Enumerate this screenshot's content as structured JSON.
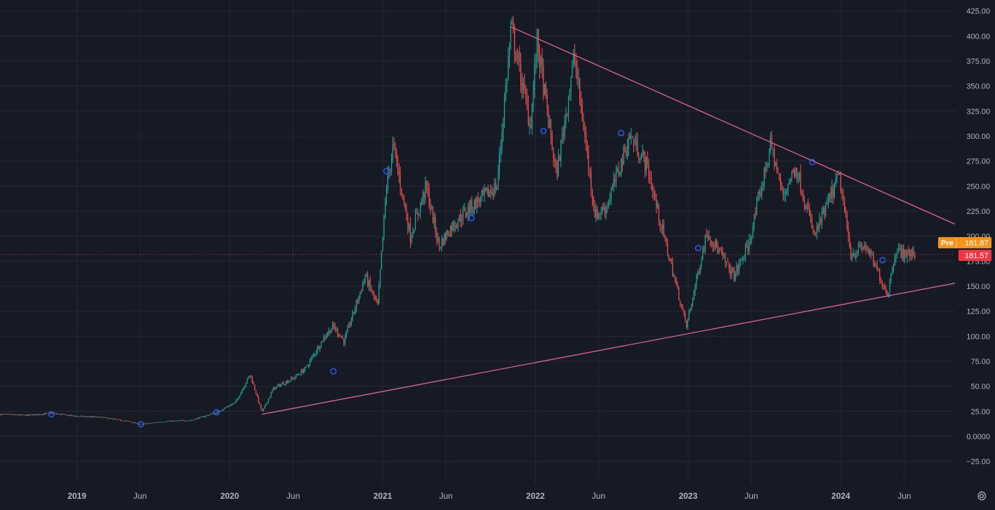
{
  "colors": {
    "background": "#161a25",
    "grid": "#232834",
    "axis_text": "#b2b5be",
    "up": "#26a69a",
    "down": "#ef5350",
    "trendline": "#e5609b",
    "marker": "#2962ff",
    "pre_badge": "#f7931a",
    "price_badge": "#f23645"
  },
  "price_axis": {
    "pre_label": "Pre",
    "pre_value": "181.87",
    "last_value": "181.57"
  },
  "settings_icon": "gear-icon",
  "chart_data": {
    "type": "candlestick",
    "y_ticks": [
      "425.00",
      "400.00",
      "375.00",
      "350.00",
      "325.00",
      "300.00",
      "275.00",
      "250.00",
      "225.00",
      "200.00",
      "175.00",
      "150.00",
      "125.00",
      "100.00",
      "75.00",
      "50.00",
      "25.00",
      "0.0000",
      "−25.00"
    ],
    "x_ticks": [
      "2019",
      "Jun",
      "2020",
      "Jun",
      "2021",
      "Jun",
      "2022",
      "Jun",
      "2023",
      "Jun",
      "2024",
      "Jun"
    ],
    "ylim": [
      -35,
      430
    ],
    "xlim": [
      "2018-07-01",
      "2024-09-30"
    ],
    "last_price": 181.57,
    "pre_market_price": 181.87,
    "grid": true,
    "trendlines": [
      {
        "name": "upper",
        "from": {
          "x": "2021-11-04",
          "y": 409
        },
        "to": {
          "x": "2024-09-30",
          "y": 212
        }
      },
      {
        "name": "lower",
        "from": {
          "x": "2020-03-18",
          "y": 22
        },
        "to": {
          "x": "2024-09-30",
          "y": 153
        }
      }
    ],
    "price_path": [
      [
        "2018-07-01",
        22
      ],
      [
        "2018-09-01",
        21
      ],
      [
        "2018-11-01",
        23
      ],
      [
        "2019-01-01",
        20
      ],
      [
        "2019-03-01",
        19
      ],
      [
        "2019-05-01",
        15
      ],
      [
        "2019-06-03",
        12
      ],
      [
        "2019-08-01",
        15
      ],
      [
        "2019-10-01",
        16
      ],
      [
        "2019-12-01",
        24
      ],
      [
        "2020-01-15",
        34
      ],
      [
        "2020-02-19",
        62
      ],
      [
        "2020-03-18",
        24
      ],
      [
        "2020-04-15",
        48
      ],
      [
        "2020-06-01",
        58
      ],
      [
        "2020-07-01",
        68
      ],
      [
        "2020-08-15",
        100
      ],
      [
        "2020-09-05",
        110
      ],
      [
        "2020-10-01",
        95
      ],
      [
        "2020-11-20",
        160
      ],
      [
        "2020-12-20",
        130
      ],
      [
        "2021-01-10",
        250
      ],
      [
        "2021-01-26",
        290
      ],
      [
        "2021-03-08",
        200
      ],
      [
        "2021-04-15",
        250
      ],
      [
        "2021-05-15",
        190
      ],
      [
        "2021-06-15",
        210
      ],
      [
        "2021-08-01",
        230
      ],
      [
        "2021-10-01",
        250
      ],
      [
        "2021-11-04",
        409
      ],
      [
        "2021-12-20",
        310
      ],
      [
        "2022-01-05",
        395
      ],
      [
        "2022-02-20",
        260
      ],
      [
        "2022-04-04",
        380
      ],
      [
        "2022-05-24",
        220
      ],
      [
        "2022-06-20",
        230
      ],
      [
        "2022-08-15",
        300
      ],
      [
        "2022-09-25",
        270
      ],
      [
        "2022-10-20",
        225
      ],
      [
        "2022-12-28",
        110
      ],
      [
        "2023-02-15",
        205
      ],
      [
        "2023-04-20",
        160
      ],
      [
        "2023-05-25",
        190
      ],
      [
        "2023-07-18",
        292
      ],
      [
        "2023-08-15",
        240
      ],
      [
        "2023-09-15",
        270
      ],
      [
        "2023-10-30",
        200
      ],
      [
        "2023-12-28",
        260
      ],
      [
        "2024-01-25",
        182
      ],
      [
        "2024-03-01",
        190
      ],
      [
        "2024-04-22",
        142
      ],
      [
        "2024-05-10",
        185
      ],
      [
        "2024-06-15",
        182
      ],
      [
        "2024-06-26",
        181.57
      ]
    ],
    "markers": [
      {
        "x": "2018-11-01",
        "y": 22
      },
      {
        "x": "2019-06-03",
        "y": 12
      },
      {
        "x": "2019-12-01",
        "y": 24
      },
      {
        "x": "2020-09-05",
        "y": 65
      },
      {
        "x": "2021-01-10",
        "y": 265
      },
      {
        "x": "2021-08-01",
        "y": 218
      },
      {
        "x": "2022-01-20",
        "y": 305
      },
      {
        "x": "2022-07-25",
        "y": 303
      },
      {
        "x": "2023-01-25",
        "y": 188
      },
      {
        "x": "2023-10-25",
        "y": 274
      },
      {
        "x": "2024-04-10",
        "y": 176
      }
    ]
  }
}
